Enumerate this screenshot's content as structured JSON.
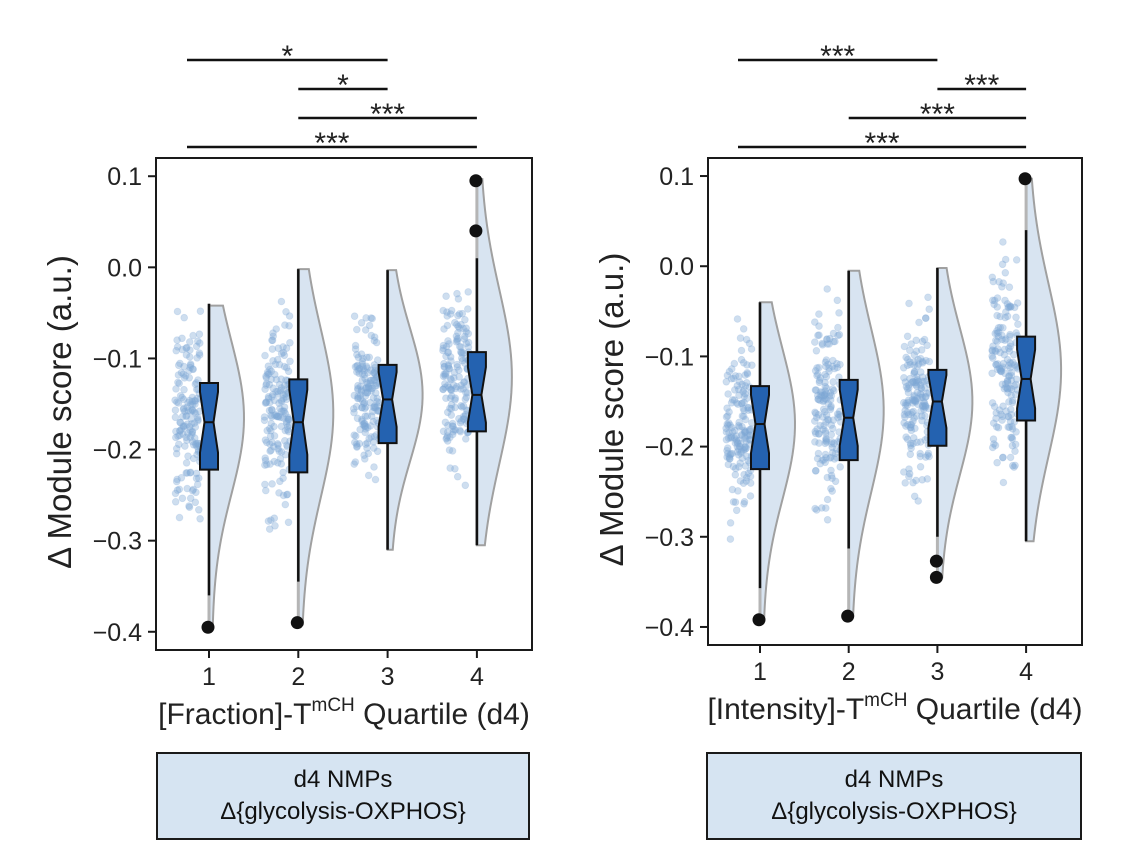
{
  "colors": {
    "box_fill": "#2462b0",
    "point_fill": "#7fa9d6",
    "violin_fill": "#d8e4f1",
    "violin_stroke": "#a0a0a0",
    "caption_bg": "#d6e4f2"
  },
  "chart_data": [
    {
      "type": "raincloud-boxplot",
      "ylabel": "Δ Module score (a.u.)",
      "xlabel_parts": [
        "[Fraction]-T",
        "mCH",
        " Quartile (d4)"
      ],
      "categories": [
        "1",
        "2",
        "3",
        "4"
      ],
      "ylim": [
        -0.42,
        0.12
      ],
      "yticks": [
        0.1,
        0.0,
        -0.1,
        -0.2,
        -0.3,
        -0.4
      ],
      "ytick_labels": [
        "0.1",
        "0.0",
        "−0.1",
        "−0.2",
        "−0.3",
        "−0.4"
      ],
      "boxes": [
        {
          "q1": -0.222,
          "median": -0.17,
          "q3": -0.127,
          "whisker_low": -0.36,
          "whisker_high": -0.04,
          "outliers": [
            -0.395
          ],
          "point_range": [
            -0.395,
            -0.042
          ],
          "point_center": -0.165
        },
        {
          "q1": -0.225,
          "median": -0.17,
          "q3": -0.123,
          "whisker_low": -0.345,
          "whisker_high": -0.002,
          "outliers": [
            -0.39
          ],
          "point_range": [
            -0.392,
            -0.002
          ],
          "point_center": -0.16
        },
        {
          "q1": -0.193,
          "median": -0.145,
          "q3": -0.107,
          "whisker_low": -0.31,
          "whisker_high": -0.003,
          "outliers": [],
          "point_range": [
            -0.31,
            -0.003
          ],
          "point_center": -0.14
        },
        {
          "q1": -0.18,
          "median": -0.14,
          "q3": -0.093,
          "whisker_low": -0.305,
          "whisker_high": 0.01,
          "outliers": [
            0.04,
            0.095
          ],
          "point_range": [
            -0.305,
            0.097
          ],
          "point_center": -0.12
        }
      ],
      "significance": [
        {
          "from": "1",
          "to": "3",
          "label": "*"
        },
        {
          "from": "2",
          "to": "3",
          "label": "*"
        },
        {
          "from": "2",
          "to": "4",
          "label": "***"
        },
        {
          "from": "1",
          "to": "4",
          "label": "***"
        }
      ],
      "caption": [
        "d4 NMPs",
        "Δ{glycolysis-OXPHOS}"
      ]
    },
    {
      "type": "raincloud-boxplot",
      "ylabel": "Δ Module score (a.u.)",
      "xlabel_parts": [
        "[Intensity]-T",
        "mCH",
        " Quartile (d4)"
      ],
      "categories": [
        "1",
        "2",
        "3",
        "4"
      ],
      "ylim": [
        -0.42,
        0.12
      ],
      "yticks": [
        0.1,
        0.0,
        -0.1,
        -0.2,
        -0.3,
        -0.4
      ],
      "ytick_labels": [
        "0.1",
        "0.0",
        "−0.1",
        "−0.2",
        "−0.3",
        "−0.4"
      ],
      "boxes": [
        {
          "q1": -0.225,
          "median": -0.175,
          "q3": -0.133,
          "whisker_low": -0.357,
          "whisker_high": -0.04,
          "outliers": [
            -0.392
          ],
          "point_range": [
            -0.392,
            -0.04
          ],
          "point_center": -0.175
        },
        {
          "q1": -0.215,
          "median": -0.168,
          "q3": -0.126,
          "whisker_low": -0.313,
          "whisker_high": -0.005,
          "outliers": [
            -0.388
          ],
          "point_range": [
            -0.388,
            -0.005
          ],
          "point_center": -0.16
        },
        {
          "q1": -0.199,
          "median": -0.15,
          "q3": -0.115,
          "whisker_low": -0.3,
          "whisker_high": -0.002,
          "outliers": [
            -0.327,
            -0.345
          ],
          "point_range": [
            -0.345,
            -0.002
          ],
          "point_center": -0.15
        },
        {
          "q1": -0.171,
          "median": -0.125,
          "q3": -0.078,
          "whisker_low": -0.305,
          "whisker_high": 0.04,
          "outliers": [
            0.097
          ],
          "point_range": [
            -0.305,
            0.097
          ],
          "point_center": -0.115
        }
      ],
      "significance": [
        {
          "from": "1",
          "to": "3",
          "label": "***"
        },
        {
          "from": "3",
          "to": "4",
          "label": "***"
        },
        {
          "from": "2",
          "to": "4",
          "label": "***"
        },
        {
          "from": "1",
          "to": "4",
          "label": "***"
        }
      ],
      "caption": [
        "d4 NMPs",
        "Δ{glycolysis-OXPHOS}"
      ]
    }
  ]
}
